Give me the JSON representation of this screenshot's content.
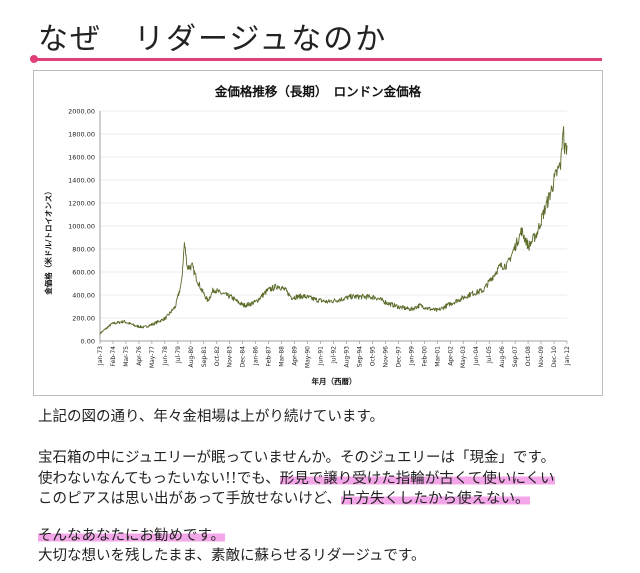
{
  "page": {
    "title": "なぜ　リダージュなのか",
    "accent_color": "#e0407a",
    "highlight_color": "#f3a6e8"
  },
  "chart_data": {
    "type": "line",
    "title": "金価格推移（長期）　ロンドン金価格",
    "xlabel": "年月（西暦）",
    "ylabel": "金価格（米ドル/トロイオンス）",
    "ylim": [
      0,
      2000
    ],
    "y_ticks": [
      "0.00",
      "200.00",
      "400.00",
      "600.00",
      "800.00",
      "1000.00",
      "1200.00",
      "1400.00",
      "1600.00",
      "1800.00",
      "2000.00"
    ],
    "x_ticks": [
      "Jan-73",
      "Feb-74",
      "Mar-75",
      "Apr-76",
      "May-77",
      "Jun-78",
      "Jul-79",
      "Aug-80",
      "Sep-81",
      "Oct-82",
      "Nov-83",
      "Dec-84",
      "Jan-86",
      "Feb-87",
      "Mar-88",
      "Apr-89",
      "May-90",
      "Jun-91",
      "Jul-92",
      "Aug-93",
      "Sep-94",
      "Oct-95",
      "Nov-96",
      "Dec-97",
      "Jan-99",
      "Feb-00",
      "Mar-01",
      "Apr-02",
      "May-03",
      "Jun-04",
      "Jul-05",
      "Aug-06",
      "Sep-07",
      "Oct-08",
      "Nov-09",
      "Dec-10",
      "Jan-12"
    ],
    "line_color": "#5a6b2a",
    "series": [
      {
        "x": [
          1973.0,
          1974.0,
          1975.0,
          1976.0,
          1976.7,
          1977.5,
          1978.5,
          1979.3,
          1979.8,
          1980.05,
          1980.3,
          1980.7,
          1981.0,
          1981.5,
          1982.0,
          1982.5,
          1983.0,
          1983.5,
          1984.0,
          1984.5,
          1985.0,
          1985.5,
          1986.0,
          1987.0,
          1987.9,
          1988.5,
          1989.0,
          1990.0,
          1991.0,
          1992.0,
          1993.0,
          1994.0,
          1995.0,
          1996.0,
          1997.0,
          1998.0,
          1999.0,
          1999.7,
          2000.5,
          2001.2,
          2002.0,
          2003.0,
          2004.0,
          2005.0,
          2006.0,
          2006.4,
          2007.0,
          2008.0,
          2008.2,
          2008.8,
          2009.5,
          2010.0,
          2010.5,
          2011.0,
          2011.5,
          2011.67,
          2011.8,
          2012.0
        ],
        "values": [
          65,
          150,
          170,
          130,
          120,
          150,
          200,
          300,
          500,
          850,
          640,
          650,
          560,
          440,
          350,
          450,
          420,
          400,
          380,
          340,
          310,
          320,
          340,
          440,
          480,
          440,
          380,
          390,
          360,
          340,
          360,
          385,
          385,
          380,
          330,
          295,
          275,
          310,
          280,
          265,
          310,
          360,
          410,
          440,
          590,
          650,
          660,
          900,
          960,
          820,
          940,
          1100,
          1250,
          1420,
          1550,
          1880,
          1650,
          1700
        ]
      }
    ]
  },
  "text": {
    "p1": "上記の図の通り、年々金相場は上がり続けています。",
    "p2": "宝石箱の中にジュエリーが眠っていませんか。そのジュエリーは「現金」です。",
    "p3a": "使わないなんてもったいない!!でも、",
    "p3b": "形見で譲り受けた指輪が古くて使いにくい",
    "p4a": "このピアスは思い出があって手放せないけど、",
    "p4b": "片方失くしたから使えない。",
    "p5": "そんなあなたにお勧めです。",
    "p6": "大切な想いを残したまま、素敵に蘇らせるリダージュです。"
  }
}
